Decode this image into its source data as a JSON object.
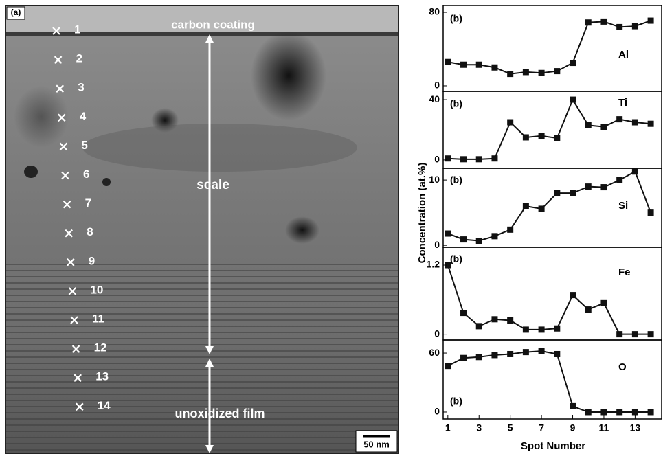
{
  "micrograph": {
    "panel_label": "(a)",
    "top_label": "carbon coating",
    "middle_label": "scale",
    "bottom_label": "unoxidized film",
    "scale_bar": "50 nm",
    "spots": [
      1,
      2,
      3,
      4,
      5,
      6,
      7,
      8,
      9,
      10,
      11,
      12,
      13,
      14
    ]
  },
  "y_label": "Concentration (at.%)",
  "x_label": "Spot Number",
  "chart_data": [
    {
      "type": "line",
      "panel_label": "(b)",
      "x": [
        1,
        2,
        3,
        4,
        5,
        6,
        7,
        8,
        9,
        10,
        11,
        12,
        13,
        14
      ],
      "xlim": [
        0.7,
        14.7
      ],
      "ylim": [
        -6,
        87.5
      ],
      "yticks": [
        0,
        80
      ],
      "series": [
        {
          "name": "Al",
          "color": "#111111",
          "values": [
            26,
            23,
            23,
            20,
            13,
            15,
            14,
            16,
            25,
            69,
            70,
            64,
            65,
            71
          ]
        }
      ]
    },
    {
      "type": "line",
      "panel_label": "(b)",
      "x": [
        1,
        2,
        3,
        4,
        5,
        6,
        7,
        8,
        9,
        10,
        11,
        12,
        13,
        14
      ],
      "xlim": [
        0.7,
        14.7
      ],
      "ylim": [
        -5.5,
        45.5
      ],
      "yticks": [
        0,
        40
      ],
      "series": [
        {
          "name": "Ti",
          "color": "#111111",
          "values": [
            1,
            0.5,
            0.5,
            1,
            25,
            15,
            16,
            14.5,
            40,
            23,
            22,
            27,
            25,
            24
          ]
        }
      ]
    },
    {
      "type": "line",
      "panel_label": "(b)",
      "x": [
        1,
        2,
        3,
        4,
        5,
        6,
        7,
        8,
        9,
        10,
        11,
        12,
        13,
        14
      ],
      "xlim": [
        0.7,
        14.7
      ],
      "ylim": [
        -0.3,
        11.8
      ],
      "yticks": [
        0,
        10
      ],
      "series": [
        {
          "name": "Si",
          "color": "#111111",
          "values": [
            1.8,
            0.9,
            0.7,
            1.4,
            2.4,
            6,
            5.6,
            8,
            8,
            9,
            8.9,
            10,
            11.3,
            5
          ]
        }
      ]
    },
    {
      "type": "line",
      "panel_label": "(b)",
      "x": [
        1,
        2,
        3,
        4,
        5,
        6,
        7,
        8,
        9,
        10,
        11,
        12,
        13,
        14
      ],
      "xlim": [
        0.7,
        14.7
      ],
      "ylim": [
        -0.1,
        1.51
      ],
      "yticks": [
        0,
        1.2
      ],
      "series": [
        {
          "name": "Fe",
          "color": "#111111",
          "values": [
            1.2,
            0.37,
            0.14,
            0.26,
            0.24,
            0.08,
            0.08,
            0.1,
            0.68,
            0.43,
            0.54,
            0,
            0,
            0
          ]
        }
      ]
    },
    {
      "type": "line",
      "panel_label": "(b)",
      "x": [
        1,
        2,
        3,
        4,
        5,
        6,
        7,
        8,
        9,
        10,
        11,
        12,
        13,
        14
      ],
      "xlim": [
        0.7,
        14.7
      ],
      "ylim": [
        -7,
        73.3
      ],
      "yticks": [
        0,
        60
      ],
      "xticks": [
        1,
        3,
        5,
        7,
        9,
        11,
        13
      ],
      "series": [
        {
          "name": "O",
          "color": "#111111",
          "values": [
            47,
            55,
            56,
            58,
            59,
            61,
            62,
            59,
            6,
            0,
            0,
            0,
            0,
            0
          ]
        }
      ]
    }
  ]
}
